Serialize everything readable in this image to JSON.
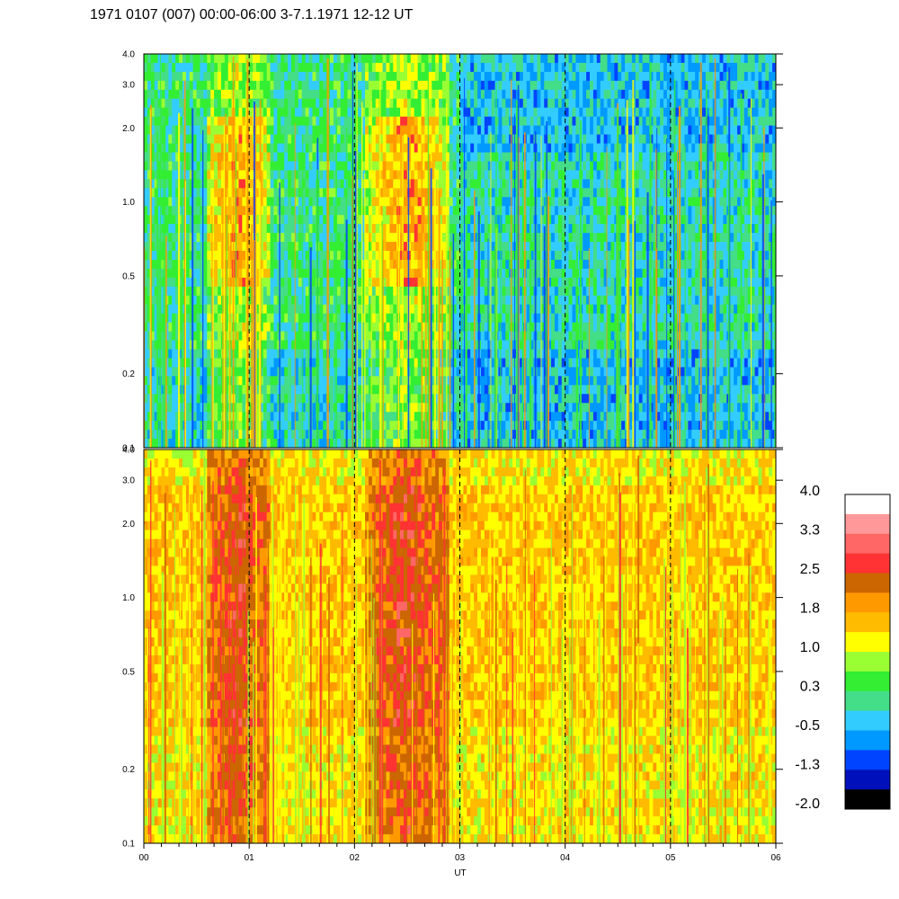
{
  "chart_data": {
    "type": "heatmap",
    "title": "1971 0107 (007) 00:00-06:00 3-7.1.1971  12-12 UT",
    "xlabel": "UT",
    "ylabel": "",
    "x_ticks": [
      "00",
      "01",
      "02",
      "03",
      "04",
      "05",
      "06"
    ],
    "xlim": [
      0,
      6
    ],
    "y_scale": "log",
    "ylim": [
      0.1,
      4.0
    ],
    "y_ticks": [
      {
        "value": 0.1,
        "label": "0.1"
      },
      {
        "value": 0.2,
        "label": "0.2"
      },
      {
        "value": 0.5,
        "label": "0.5"
      },
      {
        "value": 1.0,
        "label": "1.0"
      },
      {
        "value": 2.0,
        "label": "2.0"
      },
      {
        "value": 3.0,
        "label": "3.0"
      },
      {
        "value": 4.0,
        "label": "4.0"
      }
    ],
    "vertical_dashed_lines_at": [
      1,
      2,
      3,
      4,
      5
    ],
    "panels": [
      {
        "name": "upper",
        "dominant_colors": [
          "green",
          "cyan",
          "blue"
        ],
        "activity_bands": [
          [
            0.6,
            1.2
          ],
          [
            2.1,
            2.9
          ]
        ]
      },
      {
        "name": "lower",
        "dominant_colors": [
          "orange",
          "yellow",
          "red"
        ],
        "activity_bands": [
          [
            0.6,
            1.2
          ],
          [
            2.1,
            2.9
          ]
        ]
      }
    ],
    "colorbar": {
      "labels": [
        "4.0",
        "3.3",
        "2.5",
        "1.8",
        "1.0",
        "0.3",
        "-0.5",
        "-1.3",
        "-2.0"
      ],
      "colors": [
        "#ffffff",
        "#ff9999",
        "#ff6666",
        "#ff3333",
        "#cc6600",
        "#ff9900",
        "#ffbb00",
        "#ffff00",
        "#99ff33",
        "#33ee33",
        "#44dd88",
        "#33ccff",
        "#0099ff",
        "#0044ff",
        "#0011bb",
        "#000000"
      ]
    }
  }
}
